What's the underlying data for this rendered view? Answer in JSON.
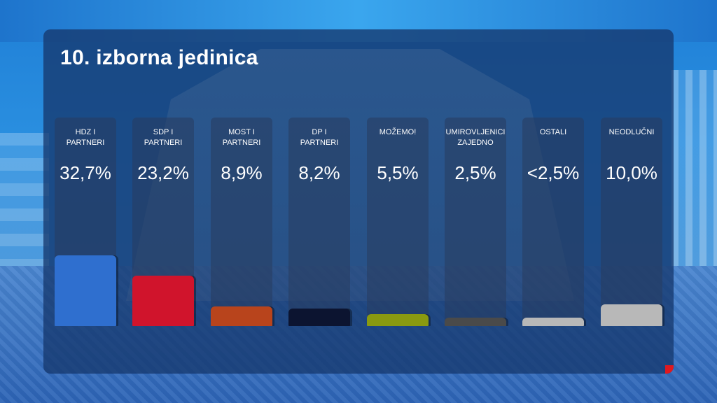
{
  "title": "10. izborna jedinica",
  "chart_data": {
    "type": "bar",
    "categories": [
      "HDZ I PARTNERI",
      "SDP I PARTNERI",
      "MOST I PARTNERI",
      "DP I PARTNERI",
      "MOŽEMO!",
      "UMIROVLJENICI ZAJEDNO",
      "OSTALI",
      "NEODLUČNI"
    ],
    "label_lines": [
      [
        "HDZ I",
        "PARTNERI"
      ],
      [
        "SDP I",
        "PARTNERI"
      ],
      [
        "MOST I",
        "PARTNERI"
      ],
      [
        "DP I",
        "PARTNERI"
      ],
      [
        "MOŽEMO!"
      ],
      [
        "UMIROVLJENICI",
        "ZAJEDNO"
      ],
      [
        "OSTALI"
      ],
      [
        "NEODLUČNI"
      ]
    ],
    "values": [
      32.7,
      23.2,
      8.9,
      8.2,
      5.5,
      2.5,
      2.5,
      10.0
    ],
    "value_labels": [
      "32,7%",
      "23,2%",
      "8,9%",
      "8,2%",
      "5,5%",
      "2,5%",
      "<2,5%",
      "10,0%"
    ],
    "colors": [
      "#2f6fcf",
      "#d0142c",
      "#b8441c",
      "#0c1430",
      "#8a9a10",
      "#4a4a4a",
      "#b8b8b8",
      "#b8b8b8"
    ],
    "title": "10. izborna jedinica",
    "xlabel": "",
    "ylabel": "",
    "ylim": [
      0,
      33
    ]
  }
}
